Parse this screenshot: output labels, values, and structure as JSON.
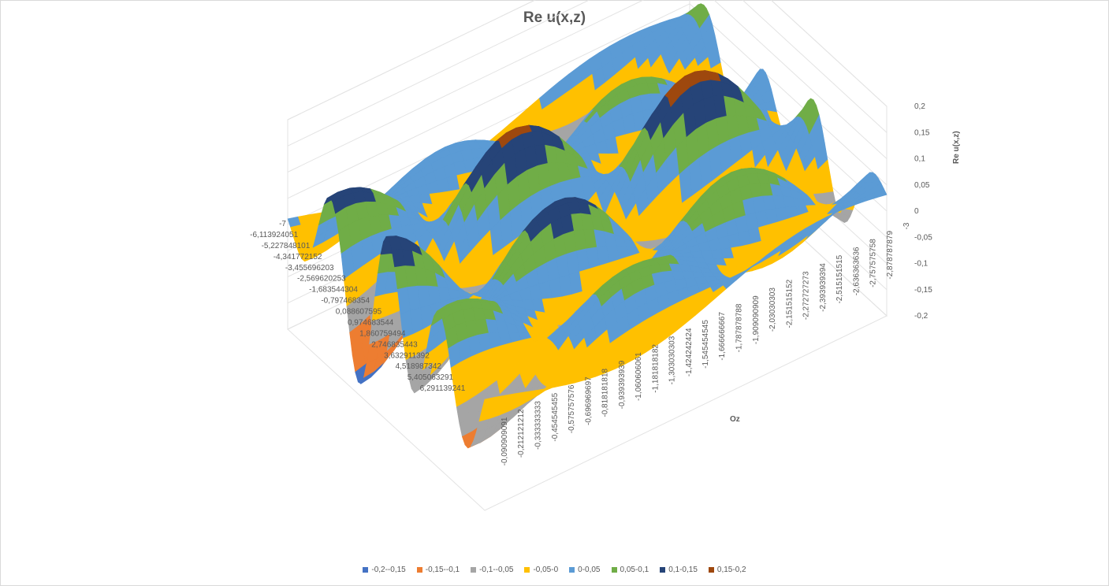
{
  "chart_data": {
    "type": "surface",
    "title": "Re u(x,z)",
    "zlabel": "Re u(x,z)",
    "xlabel": "Oz",
    "ylabel": "",
    "zlim": [
      -0.2,
      0.2
    ],
    "z_ticks": [
      "0,2",
      "0,15",
      "0,1",
      "0,05",
      "0",
      "-0,05",
      "-0,1",
      "-0,15",
      "-0,2"
    ],
    "y_ticks": [
      "-7",
      "-6,113924051",
      "-5,227848101",
      "-4,341772152",
      "-3,455696203",
      "-2,569620253",
      "-1,683544304",
      "-0,797468354",
      "0,088607595",
      "0,974683544",
      "1,860759494",
      "2,746835443",
      "3,632911392",
      "4,518987342",
      "5,405063291",
      "6,291139241"
    ],
    "x_ticks": [
      "-0,090909091",
      "-0,212121212",
      "-0,333333333",
      "-0,454545455",
      "-0,575757576",
      "-0,696969697",
      "-0,818181818",
      "-0,939393939",
      "-1,060606061",
      "-1,181818182",
      "-1,303030303",
      "-1,424242424",
      "-1,545454545",
      "-1,666666667",
      "-1,787878788",
      "-1,909090909",
      "-2,03030303",
      "-2,151515152",
      "-2,272727273",
      "-2,393939394",
      "-2,515151515",
      "-2,636363636",
      "-2,757575758",
      "-2,878787879",
      "-3"
    ],
    "legend": [
      {
        "label": "-0,2--0,15",
        "color": "#4472c4"
      },
      {
        "label": "-0,15--0,1",
        "color": "#ed7d31"
      },
      {
        "label": "-0,1--0,05",
        "color": "#a5a5a5"
      },
      {
        "label": "-0,05-0",
        "color": "#ffc000"
      },
      {
        "label": "0-0,05",
        "color": "#5b9bd5"
      },
      {
        "label": "0,05-0,1",
        "color": "#70ad47"
      },
      {
        "label": "0,1-0,15",
        "color": "#264478"
      },
      {
        "label": "0,15-0,2",
        "color": "#9e480e"
      }
    ]
  }
}
